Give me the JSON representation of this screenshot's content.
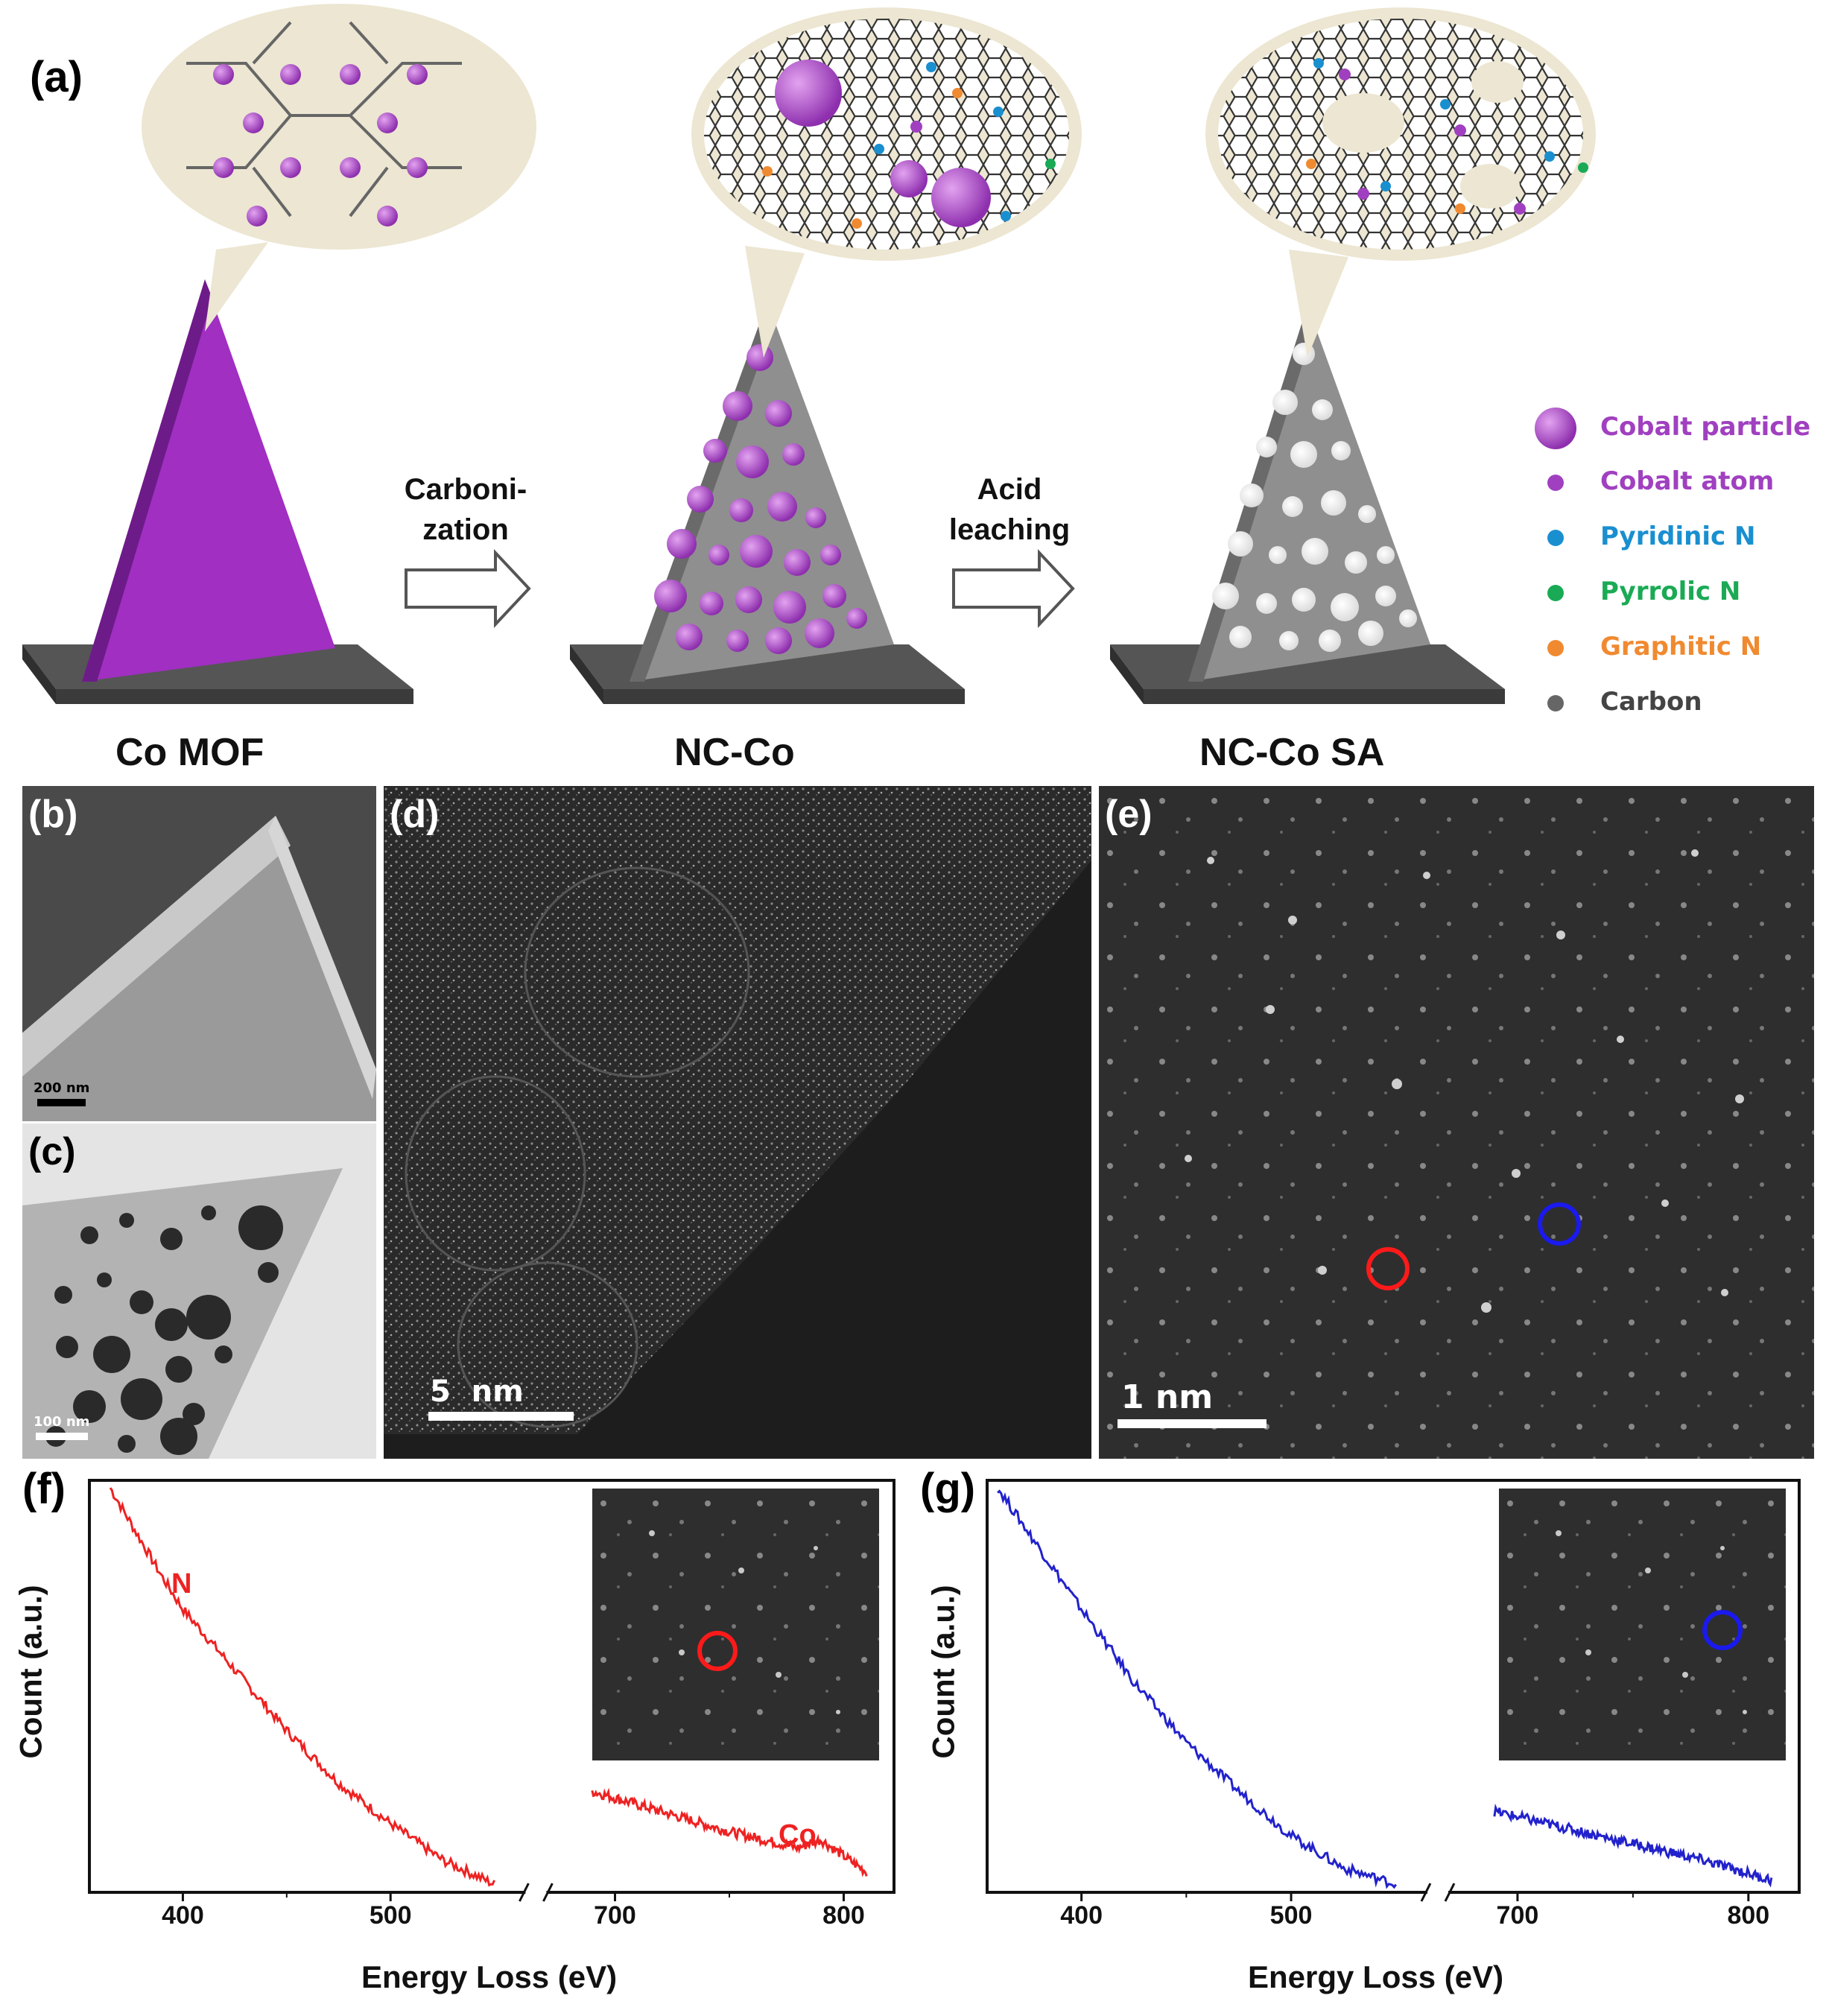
{
  "panels": {
    "a": "(a)",
    "b": "(b)",
    "c": "(c)",
    "d": "(d)",
    "e": "(e)",
    "f": "(f)",
    "g": "(g)"
  },
  "schematic": {
    "materials": [
      "Co MOF",
      "NC-Co",
      "NC-Co SA"
    ],
    "step1": [
      "Carboni-",
      "zation"
    ],
    "step2": [
      "Acid",
      "leaching"
    ],
    "legend": [
      {
        "label": "Cobalt particle",
        "color": "#a040c0",
        "icon": "cobalt-particle"
      },
      {
        "label": "Cobalt atom",
        "color": "#a040c0",
        "icon": "cobalt-atom"
      },
      {
        "label": "Pyridinic N",
        "color": "#1a8fd0",
        "icon": "pyridinic-n"
      },
      {
        "label": "Pyrrolic N",
        "color": "#1aaa55",
        "icon": "pyrrolic-n"
      },
      {
        "label": "Graphitic N",
        "color": "#f08a30",
        "icon": "graphitic-n"
      },
      {
        "label": "Carbon",
        "color": "#555555",
        "icon": "carbon"
      }
    ]
  },
  "micrographs": {
    "b_scale": "200 nm",
    "c_scale": "100 nm",
    "d_scale": "5  nm",
    "e_scale": "1 nm"
  },
  "chart_data": [
    {
      "type": "line",
      "panel": "(f)",
      "xlabel": "Energy Loss (eV)",
      "ylabel": "Count (a.u.)",
      "x_ticks": [
        "400",
        "500",
        "700",
        "800"
      ],
      "axis_break": true,
      "annotations": [
        "N",
        "Co"
      ],
      "series": [
        {
          "color": "#ee2222",
          "segment1": {
            "x": [
              365,
              390,
              400,
              425,
              450,
              475,
              500,
              525,
              550
            ],
            "y": [
              1.0,
              0.78,
              0.7,
              0.55,
              0.4,
              0.27,
              0.17,
              0.08,
              0.02
            ]
          },
          "segment2": {
            "x": [
              690,
              720,
              750,
              780,
              790,
              810
            ],
            "y": [
              0.25,
              0.2,
              0.15,
              0.11,
              0.13,
              0.05
            ]
          }
        }
      ]
    },
    {
      "type": "line",
      "panel": "(g)",
      "xlabel": "Energy Loss (eV)",
      "ylabel": "Count (a.u.)",
      "x_ticks": [
        "400",
        "500",
        "700",
        "800"
      ],
      "axis_break": true,
      "series": [
        {
          "color": "#2222cc",
          "segment1": {
            "x": [
              360,
              380,
              400,
              425,
              450,
              475,
              500,
              525,
              550
            ],
            "y": [
              1.0,
              0.85,
              0.7,
              0.52,
              0.37,
              0.25,
              0.14,
              0.06,
              0.02
            ]
          },
          "segment2": {
            "x": [
              690,
              720,
              750,
              780,
              810
            ],
            "y": [
              0.2,
              0.16,
              0.12,
              0.08,
              0.03
            ]
          }
        }
      ]
    }
  ]
}
